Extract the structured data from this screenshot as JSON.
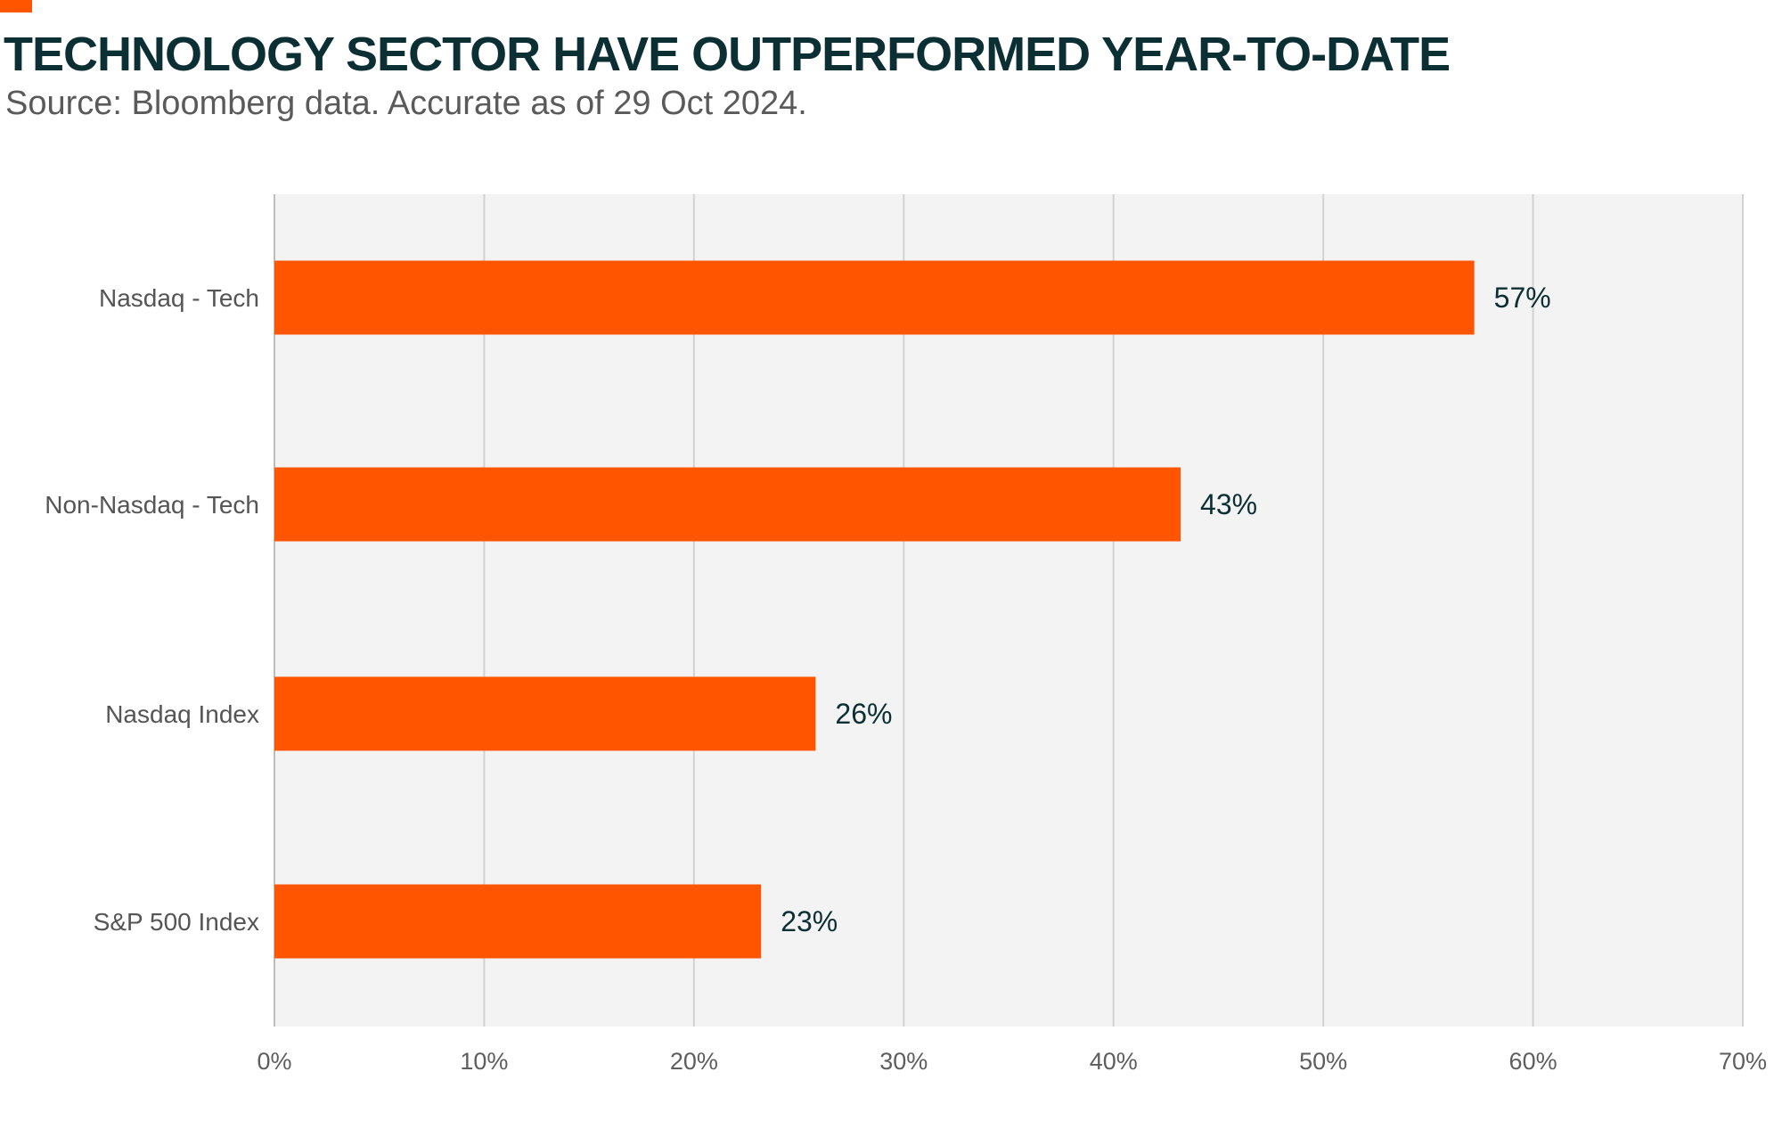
{
  "title": "TECHNOLOGY SECTOR HAVE OUTPERFORMED YEAR-TO-DATE",
  "subtitle": "Source: Bloomberg data. Accurate as of 29 Oct 2024.",
  "colors": {
    "accent": "#ff5500",
    "bar": "#ff5500",
    "title": "#0c2f33",
    "plot_background": "#f3f3f3",
    "gridline": "#d2d2d2"
  },
  "chart_data": {
    "type": "bar",
    "orientation": "horizontal",
    "categories": [
      "Nasdaq - Tech",
      "Non-Nasdaq - Tech",
      "Nasdaq Index",
      "S&P 500 Index"
    ],
    "values": [
      57.2,
      43.2,
      25.8,
      23.2
    ],
    "data_labels": [
      "57%",
      "43%",
      "26%",
      "23%"
    ],
    "xlim": [
      0,
      70
    ],
    "x_ticks": [
      0,
      10,
      20,
      30,
      40,
      50,
      60,
      70
    ],
    "x_tick_labels": [
      "0%",
      "10%",
      "20%",
      "30%",
      "40%",
      "50%",
      "60%",
      "70%"
    ],
    "unit": "%",
    "grid": true,
    "legend": "none"
  }
}
